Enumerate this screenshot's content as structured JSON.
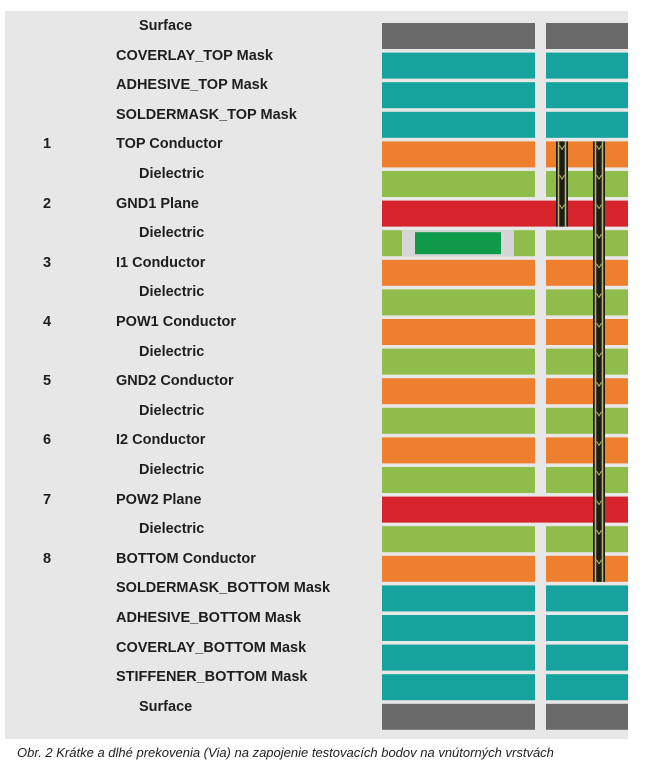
{
  "colors": {
    "surface": "#6a6a6a",
    "mask": "#16a39e",
    "conductor": "#ee7f2e",
    "dielectric": "#8fbc4a",
    "plane": "#d7232b",
    "embedded_component": "#0f9a4a",
    "via": "#1c1c1c",
    "via_plating": "#b9b46a"
  },
  "layers": [
    {
      "num": "",
      "name": "Surface",
      "type": "surface"
    },
    {
      "num": "",
      "name": "COVERLAY_TOP Mask",
      "type": "mask"
    },
    {
      "num": "",
      "name": "ADHESIVE_TOP Mask",
      "type": "mask"
    },
    {
      "num": "",
      "name": "SOLDERMASK_TOP Mask",
      "type": "mask"
    },
    {
      "num": "1",
      "name": "TOP Conductor",
      "type": "conductor"
    },
    {
      "num": "",
      "name": "Dielectric",
      "type": "dielectric"
    },
    {
      "num": "2",
      "name": "GND1 Plane",
      "type": "plane"
    },
    {
      "num": "",
      "name": "Dielectric",
      "type": "dielectric_component"
    },
    {
      "num": "3",
      "name": "I1 Conductor",
      "type": "conductor"
    },
    {
      "num": "",
      "name": "Dielectric",
      "type": "dielectric"
    },
    {
      "num": "4",
      "name": "POW1 Conductor",
      "type": "conductor"
    },
    {
      "num": "",
      "name": "Dielectric",
      "type": "dielectric"
    },
    {
      "num": "5",
      "name": "GND2 Conductor",
      "type": "conductor"
    },
    {
      "num": "",
      "name": "Dielectric",
      "type": "dielectric"
    },
    {
      "num": "6",
      "name": "I2 Conductor",
      "type": "conductor"
    },
    {
      "num": "",
      "name": "Dielectric",
      "type": "dielectric"
    },
    {
      "num": "7",
      "name": "POW2 Plane",
      "type": "plane"
    },
    {
      "num": "",
      "name": "Dielectric",
      "type": "dielectric"
    },
    {
      "num": "8",
      "name": "BOTTOM Conductor",
      "type": "conductor"
    },
    {
      "num": "",
      "name": "SOLDERMASK_BOTTOM Mask",
      "type": "mask"
    },
    {
      "num": "",
      "name": "ADHESIVE_BOTTOM Mask",
      "type": "mask"
    },
    {
      "num": "",
      "name": "COVERLAY_BOTTOM Mask",
      "type": "mask"
    },
    {
      "num": "",
      "name": "STIFFENER_BOTTOM Mask",
      "type": "mask"
    },
    {
      "num": "",
      "name": "Surface",
      "type": "surface"
    }
  ],
  "caption": "Obr. 2  Krátke a dlhé prekovenia (Via) na zapojenie testovacích bodov na vnútorných vrstvách"
}
